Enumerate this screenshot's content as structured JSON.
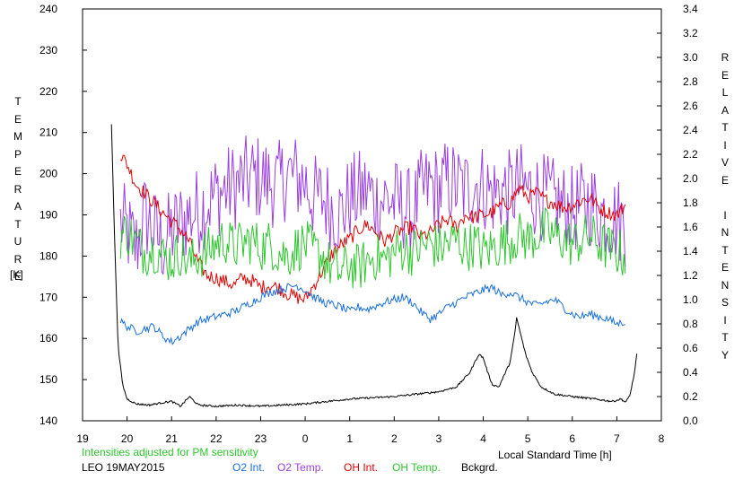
{
  "chart_data": {
    "type": "line",
    "left_axis": {
      "label": "TEMPERATURE",
      "unit": "[K]",
      "ticks": [
        "140",
        "150",
        "160",
        "170",
        "180",
        "190",
        "200",
        "210",
        "220",
        "230",
        "240"
      ],
      "ylim": [
        140,
        240
      ]
    },
    "right_axis": {
      "label": "RELATIVE INTENSITY",
      "ticks": [
        "0.0",
        "0.2",
        "0.4",
        "0.6",
        "0.8",
        "1.0",
        "1.2",
        "1.4",
        "1.6",
        "1.8",
        "2.0",
        "2.2",
        "2.4",
        "2.6",
        "2.8",
        "3.0",
        "3.2",
        "3.4"
      ],
      "ylim": [
        0,
        3.4
      ]
    },
    "x_axis": {
      "label": "Local Standard Time [h]",
      "ticks": [
        "19",
        "20",
        "21",
        "22",
        "23",
        "0",
        "1",
        "2",
        "3",
        "4",
        "5",
        "6",
        "7",
        "8"
      ],
      "xlim": [
        19,
        32
      ]
    },
    "note": "Intensities adjusted for PM sensitivity",
    "station_date": "LEO 19MAY2015",
    "legend": [
      {
        "label": "O2 Int.",
        "color": "#1a6fd6"
      },
      {
        "label": "O2 Temp.",
        "color": "#9a3fe0"
      },
      {
        "label": "OH Int.",
        "color": "#e00000"
      },
      {
        "label": "OH Temp.",
        "color": "#2ec62e"
      },
      {
        "label": "Bckgrd.",
        "color": "#000000"
      }
    ],
    "series": [
      {
        "name": "O2 Temp.",
        "axis": "left",
        "color": "#9a3fe0",
        "points": [
          [
            19.85,
            188
          ],
          [
            20.0,
            186
          ],
          [
            20.2,
            182
          ],
          [
            20.4,
            190
          ],
          [
            20.6,
            186
          ],
          [
            20.8,
            183
          ],
          [
            21.0,
            186
          ],
          [
            21.2,
            188
          ],
          [
            21.4,
            190
          ],
          [
            21.6,
            191
          ],
          [
            21.8,
            193
          ],
          [
            22.0,
            195
          ],
          [
            22.2,
            196
          ],
          [
            22.4,
            197
          ],
          [
            22.6,
            198
          ],
          [
            22.8,
            199
          ],
          [
            23.0,
            199
          ],
          [
            23.2,
            198
          ],
          [
            23.4,
            197
          ],
          [
            23.6,
            200
          ],
          [
            23.8,
            199
          ],
          [
            24.0,
            198
          ],
          [
            24.2,
            194
          ],
          [
            24.4,
            194
          ],
          [
            24.6,
            192
          ],
          [
            24.8,
            190
          ],
          [
            25.0,
            194
          ],
          [
            25.2,
            195
          ],
          [
            25.4,
            196
          ],
          [
            25.6,
            193
          ],
          [
            25.8,
            194
          ],
          [
            26.0,
            193
          ],
          [
            26.2,
            192
          ],
          [
            26.4,
            190
          ],
          [
            26.6,
            195
          ],
          [
            26.8,
            197
          ],
          [
            27.0,
            196
          ],
          [
            27.2,
            198
          ],
          [
            27.4,
            197
          ],
          [
            27.6,
            196
          ],
          [
            27.8,
            198
          ],
          [
            28.0,
            197
          ],
          [
            28.2,
            195
          ],
          [
            28.4,
            196
          ],
          [
            28.6,
            195
          ],
          [
            28.8,
            197
          ],
          [
            29.0,
            196
          ],
          [
            29.2,
            195
          ],
          [
            29.4,
            194
          ],
          [
            29.6,
            193
          ],
          [
            29.8,
            192
          ],
          [
            30.0,
            191
          ],
          [
            30.2,
            192
          ],
          [
            30.4,
            193
          ],
          [
            30.6,
            191
          ],
          [
            30.8,
            190
          ],
          [
            31.0,
            189
          ],
          [
            31.2,
            188
          ]
        ]
      },
      {
        "name": "OH Int.",
        "axis": "right",
        "color": "#e00000",
        "points": [
          [
            19.85,
            2.2
          ],
          [
            20.0,
            2.12
          ],
          [
            20.2,
            1.95
          ],
          [
            20.4,
            1.88
          ],
          [
            20.6,
            1.8
          ],
          [
            20.8,
            1.72
          ],
          [
            21.0,
            1.65
          ],
          [
            21.2,
            1.58
          ],
          [
            21.4,
            1.48
          ],
          [
            21.6,
            1.3
          ],
          [
            21.8,
            1.2
          ],
          [
            22.0,
            1.18
          ],
          [
            22.2,
            1.15
          ],
          [
            22.4,
            1.12
          ],
          [
            22.6,
            1.18
          ],
          [
            22.8,
            1.16
          ],
          [
            23.0,
            1.1
          ],
          [
            23.2,
            1.12
          ],
          [
            23.4,
            1.1
          ],
          [
            23.6,
            1.05
          ],
          [
            23.8,
            1.02
          ],
          [
            24.0,
            1.0
          ],
          [
            24.2,
            1.12
          ],
          [
            24.4,
            1.25
          ],
          [
            24.6,
            1.38
          ],
          [
            24.8,
            1.45
          ],
          [
            25.0,
            1.5
          ],
          [
            25.2,
            1.58
          ],
          [
            25.4,
            1.62
          ],
          [
            25.6,
            1.55
          ],
          [
            25.8,
            1.48
          ],
          [
            26.0,
            1.55
          ],
          [
            26.2,
            1.58
          ],
          [
            26.4,
            1.6
          ],
          [
            26.6,
            1.52
          ],
          [
            26.8,
            1.55
          ],
          [
            27.0,
            1.62
          ],
          [
            27.2,
            1.66
          ],
          [
            27.4,
            1.6
          ],
          [
            27.6,
            1.7
          ],
          [
            27.8,
            1.68
          ],
          [
            28.0,
            1.7
          ],
          [
            28.2,
            1.72
          ],
          [
            28.4,
            1.78
          ],
          [
            28.6,
            1.8
          ],
          [
            28.8,
            1.92
          ],
          [
            29.0,
            1.85
          ],
          [
            29.2,
            1.88
          ],
          [
            29.4,
            1.82
          ],
          [
            29.6,
            1.8
          ],
          [
            29.8,
            1.76
          ],
          [
            30.0,
            1.78
          ],
          [
            30.2,
            1.82
          ],
          [
            30.4,
            1.84
          ],
          [
            30.6,
            1.76
          ],
          [
            30.8,
            1.72
          ],
          [
            31.0,
            1.7
          ],
          [
            31.2,
            1.78
          ]
        ]
      },
      {
        "name": "OH Temp.",
        "axis": "left",
        "color": "#2ec62e",
        "points": [
          [
            19.85,
            185
          ],
          [
            20.0,
            186
          ],
          [
            20.2,
            183
          ],
          [
            20.4,
            181
          ],
          [
            20.6,
            182
          ],
          [
            20.8,
            180
          ],
          [
            21.0,
            179
          ],
          [
            21.2,
            181
          ],
          [
            21.4,
            178
          ],
          [
            21.6,
            180
          ],
          [
            21.8,
            181
          ],
          [
            22.0,
            183
          ],
          [
            22.2,
            184
          ],
          [
            22.4,
            182
          ],
          [
            22.6,
            183
          ],
          [
            22.8,
            184
          ],
          [
            23.0,
            182
          ],
          [
            23.2,
            183
          ],
          [
            23.4,
            181
          ],
          [
            23.6,
            180
          ],
          [
            23.8,
            182
          ],
          [
            24.0,
            183
          ],
          [
            24.2,
            181
          ],
          [
            24.4,
            180
          ],
          [
            24.6,
            177
          ],
          [
            24.8,
            176
          ],
          [
            25.0,
            178
          ],
          [
            25.2,
            177
          ],
          [
            25.4,
            179
          ],
          [
            25.6,
            180
          ],
          [
            25.8,
            179
          ],
          [
            26.0,
            181
          ],
          [
            26.2,
            182
          ],
          [
            26.4,
            181
          ],
          [
            26.6,
            182
          ],
          [
            26.8,
            183
          ],
          [
            27.0,
            182
          ],
          [
            27.2,
            183
          ],
          [
            27.4,
            184
          ],
          [
            27.6,
            182
          ],
          [
            27.8,
            183
          ],
          [
            28.0,
            181
          ],
          [
            28.2,
            182
          ],
          [
            28.4,
            183
          ],
          [
            28.6,
            184
          ],
          [
            28.8,
            185
          ],
          [
            29.0,
            184
          ],
          [
            29.2,
            185
          ],
          [
            29.4,
            186
          ],
          [
            29.6,
            185
          ],
          [
            29.8,
            184
          ],
          [
            30.0,
            183
          ],
          [
            30.2,
            184
          ],
          [
            30.4,
            185
          ],
          [
            30.6,
            183
          ],
          [
            30.8,
            182
          ],
          [
            31.0,
            181
          ],
          [
            31.2,
            180
          ]
        ]
      },
      {
        "name": "O2 Int.",
        "axis": "right",
        "color": "#1a6fd6",
        "points": [
          [
            19.85,
            0.82
          ],
          [
            20.0,
            0.78
          ],
          [
            20.2,
            0.74
          ],
          [
            20.4,
            0.76
          ],
          [
            20.6,
            0.78
          ],
          [
            20.8,
            0.7
          ],
          [
            21.0,
            0.65
          ],
          [
            21.2,
            0.7
          ],
          [
            21.4,
            0.76
          ],
          [
            21.6,
            0.82
          ],
          [
            21.8,
            0.84
          ],
          [
            22.0,
            0.86
          ],
          [
            22.2,
            0.88
          ],
          [
            22.4,
            0.9
          ],
          [
            22.6,
            0.94
          ],
          [
            22.8,
            0.98
          ],
          [
            23.0,
            1.02
          ],
          [
            23.2,
            1.06
          ],
          [
            23.4,
            1.08
          ],
          [
            23.6,
            1.1
          ],
          [
            23.8,
            1.12
          ],
          [
            24.0,
            1.08
          ],
          [
            24.2,
            1.02
          ],
          [
            24.4,
            0.98
          ],
          [
            24.6,
            0.96
          ],
          [
            24.8,
            0.94
          ],
          [
            25.0,
            0.9
          ],
          [
            25.2,
            0.94
          ],
          [
            25.4,
            0.92
          ],
          [
            25.6,
            0.95
          ],
          [
            25.8,
            0.98
          ],
          [
            26.0,
            1.0
          ],
          [
            26.2,
            1.02
          ],
          [
            26.4,
            0.98
          ],
          [
            26.6,
            0.9
          ],
          [
            26.8,
            0.84
          ],
          [
            27.0,
            0.88
          ],
          [
            27.2,
            0.94
          ],
          [
            27.4,
            0.98
          ],
          [
            27.6,
            1.02
          ],
          [
            27.8,
            1.05
          ],
          [
            28.0,
            1.08
          ],
          [
            28.2,
            1.1
          ],
          [
            28.4,
            1.04
          ],
          [
            28.6,
            1.06
          ],
          [
            28.8,
            1.02
          ],
          [
            29.0,
            0.98
          ],
          [
            29.2,
            0.95
          ],
          [
            29.4,
            0.98
          ],
          [
            29.6,
            1.0
          ],
          [
            29.8,
            0.94
          ],
          [
            30.0,
            0.88
          ],
          [
            30.2,
            0.86
          ],
          [
            30.4,
            0.88
          ],
          [
            30.6,
            0.86
          ],
          [
            30.8,
            0.84
          ],
          [
            31.0,
            0.8
          ],
          [
            31.2,
            0.82
          ]
        ]
      },
      {
        "name": "Bckgrd.",
        "axis": "right",
        "color": "#000000",
        "points": [
          [
            19.65,
            2.45
          ],
          [
            19.72,
            1.5
          ],
          [
            19.8,
            0.6
          ],
          [
            19.9,
            0.3
          ],
          [
            20.0,
            0.18
          ],
          [
            20.2,
            0.14
          ],
          [
            20.5,
            0.13
          ],
          [
            20.8,
            0.15
          ],
          [
            21.0,
            0.16
          ],
          [
            21.2,
            0.12
          ],
          [
            21.4,
            0.2
          ],
          [
            21.6,
            0.13
          ],
          [
            22.0,
            0.12
          ],
          [
            22.5,
            0.13
          ],
          [
            23.0,
            0.12
          ],
          [
            23.5,
            0.13
          ],
          [
            24.0,
            0.14
          ],
          [
            24.5,
            0.16
          ],
          [
            25.0,
            0.18
          ],
          [
            25.5,
            0.19
          ],
          [
            26.0,
            0.2
          ],
          [
            26.5,
            0.22
          ],
          [
            27.0,
            0.24
          ],
          [
            27.4,
            0.28
          ],
          [
            27.7,
            0.4
          ],
          [
            27.9,
            0.55
          ],
          [
            28.0,
            0.52
          ],
          [
            28.1,
            0.4
          ],
          [
            28.2,
            0.3
          ],
          [
            28.35,
            0.28
          ],
          [
            28.5,
            0.4
          ],
          [
            28.6,
            0.48
          ],
          [
            28.7,
            0.7
          ],
          [
            28.75,
            0.85
          ],
          [
            28.85,
            0.7
          ],
          [
            28.95,
            0.55
          ],
          [
            29.1,
            0.4
          ],
          [
            29.3,
            0.28
          ],
          [
            29.6,
            0.22
          ],
          [
            30.0,
            0.2
          ],
          [
            30.5,
            0.18
          ],
          [
            30.9,
            0.16
          ],
          [
            31.1,
            0.18
          ],
          [
            31.2,
            0.15
          ],
          [
            31.3,
            0.22
          ],
          [
            31.4,
            0.4
          ],
          [
            31.45,
            0.55
          ]
        ]
      }
    ],
    "grid": false
  }
}
